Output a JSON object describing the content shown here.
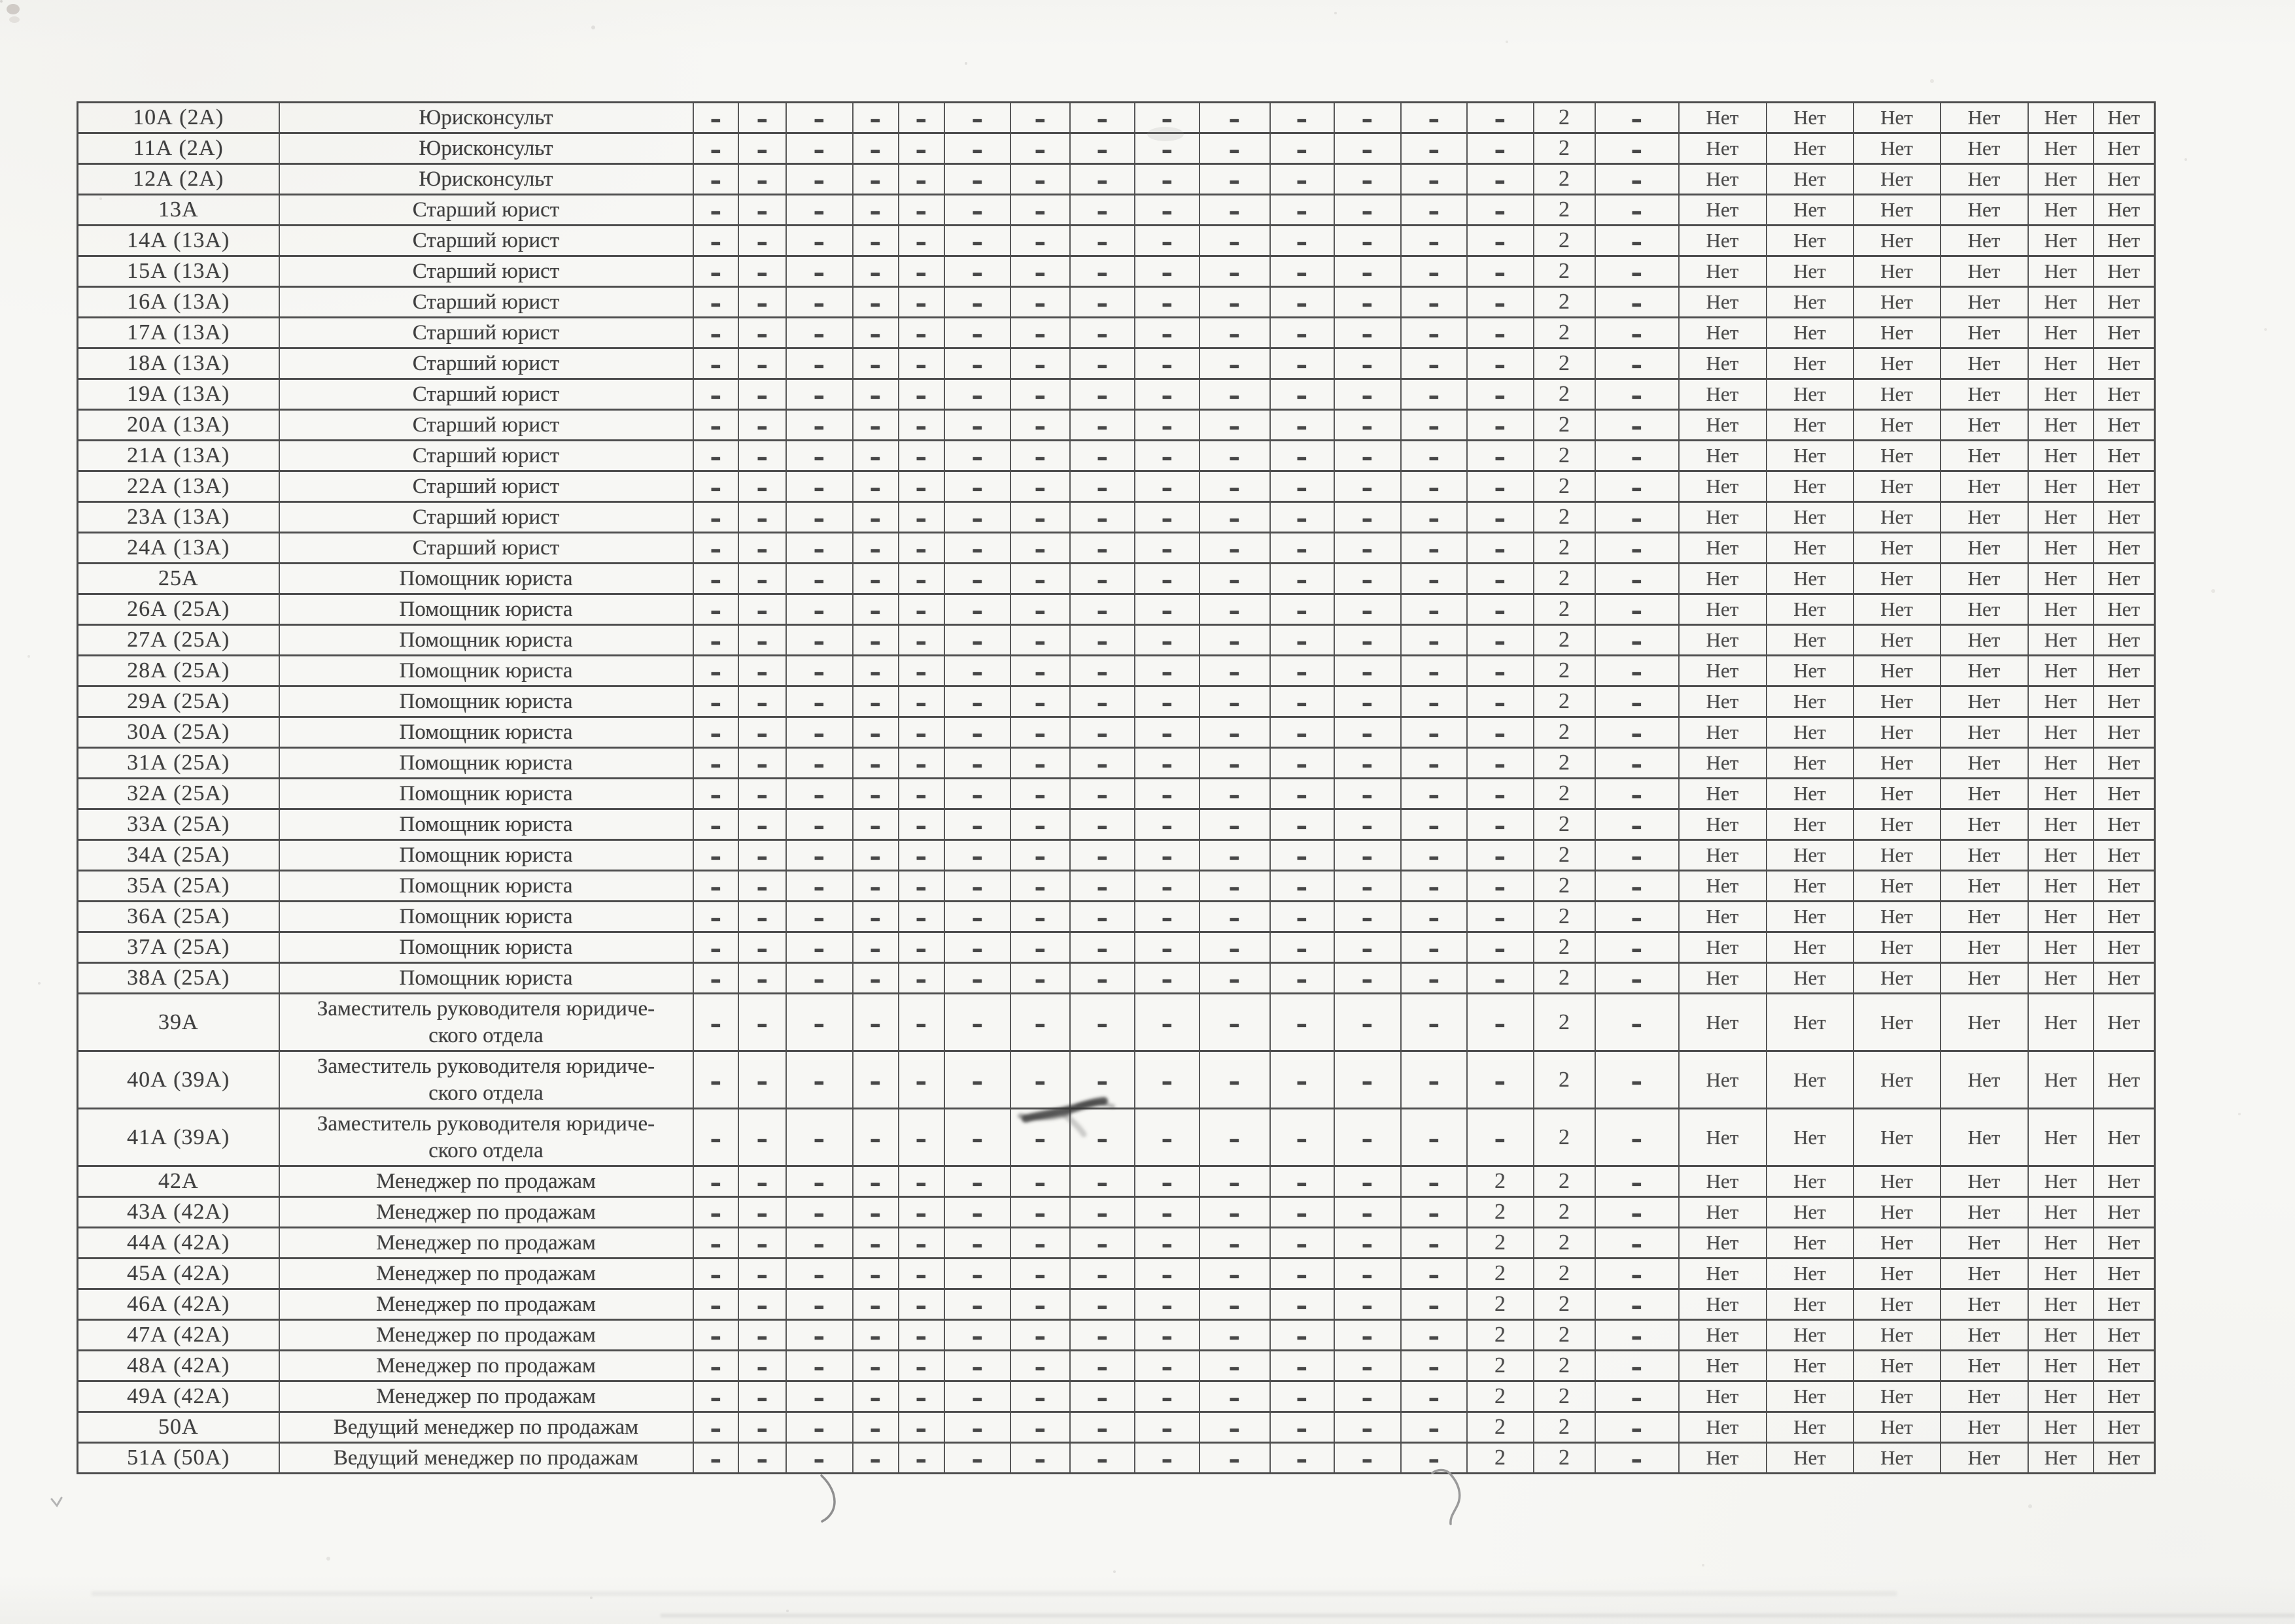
{
  "page": {
    "kind": "scanned table page (continuation, no visible header)",
    "language": "ru"
  },
  "colors": {
    "paper": "#f7f7f4",
    "ink": "#434343",
    "grid_line": "#4e4e4e"
  },
  "table": {
    "cell_patterns": {
      "legal": [
        "-",
        "-",
        "-",
        "-",
        "-",
        "-",
        "-",
        "-",
        "-",
        "-",
        "-",
        "-",
        "-",
        "-",
        "2",
        "-",
        "Нет",
        "Нет",
        "Нет",
        "Нет",
        "Нет",
        "Нет"
      ],
      "sales": [
        "-",
        "-",
        "-",
        "-",
        "-",
        "-",
        "-",
        "-",
        "-",
        "-",
        "-",
        "-",
        "-",
        "2",
        "2",
        "-",
        "Нет",
        "Нет",
        "Нет",
        "Нет",
        "Нет",
        "Нет"
      ]
    },
    "rows": [
      {
        "code": "10А (2А)",
        "position": "Юрисконсульт",
        "pattern": "legal",
        "tall": false
      },
      {
        "code": "11А (2А)",
        "position": "Юрисконсульт",
        "pattern": "legal",
        "tall": false
      },
      {
        "code": "12А (2А)",
        "position": "Юрисконсульт",
        "pattern": "legal",
        "tall": false
      },
      {
        "code": "13А",
        "position": "Старший юрист",
        "pattern": "legal",
        "tall": false
      },
      {
        "code": "14А (13А)",
        "position": "Старший юрист",
        "pattern": "legal",
        "tall": false
      },
      {
        "code": "15А (13А)",
        "position": "Старший юрист",
        "pattern": "legal",
        "tall": false
      },
      {
        "code": "16А (13А)",
        "position": "Старший юрист",
        "pattern": "legal",
        "tall": false
      },
      {
        "code": "17А (13А)",
        "position": "Старший юрист",
        "pattern": "legal",
        "tall": false
      },
      {
        "code": "18А (13А)",
        "position": "Старший юрист",
        "pattern": "legal",
        "tall": false
      },
      {
        "code": "19А (13А)",
        "position": "Старший юрист",
        "pattern": "legal",
        "tall": false
      },
      {
        "code": "20А (13А)",
        "position": "Старший юрист",
        "pattern": "legal",
        "tall": false
      },
      {
        "code": "21А (13А)",
        "position": "Старший юрист",
        "pattern": "legal",
        "tall": false
      },
      {
        "code": "22А (13А)",
        "position": "Старший юрист",
        "pattern": "legal",
        "tall": false
      },
      {
        "code": "23А (13А)",
        "position": "Старший юрист",
        "pattern": "legal",
        "tall": false
      },
      {
        "code": "24А (13А)",
        "position": "Старший юрист",
        "pattern": "legal",
        "tall": false
      },
      {
        "code": "25А",
        "position": "Помощник юриста",
        "pattern": "legal",
        "tall": false
      },
      {
        "code": "26А (25А)",
        "position": "Помощник юриста",
        "pattern": "legal",
        "tall": false
      },
      {
        "code": "27А (25А)",
        "position": "Помощник юриста",
        "pattern": "legal",
        "tall": false
      },
      {
        "code": "28А (25А)",
        "position": "Помощник юриста",
        "pattern": "legal",
        "tall": false
      },
      {
        "code": "29А (25А)",
        "position": "Помощник юриста",
        "pattern": "legal",
        "tall": false
      },
      {
        "code": "30А (25А)",
        "position": "Помощник юриста",
        "pattern": "legal",
        "tall": false
      },
      {
        "code": "31А (25А)",
        "position": "Помощник юриста",
        "pattern": "legal",
        "tall": false
      },
      {
        "code": "32А (25А)",
        "position": "Помощник юриста",
        "pattern": "legal",
        "tall": false
      },
      {
        "code": "33А (25А)",
        "position": "Помощник юриста",
        "pattern": "legal",
        "tall": false
      },
      {
        "code": "34А (25А)",
        "position": "Помощник юриста",
        "pattern": "legal",
        "tall": false
      },
      {
        "code": "35А (25А)",
        "position": "Помощник юриста",
        "pattern": "legal",
        "tall": false
      },
      {
        "code": "36А (25А)",
        "position": "Помощник юриста",
        "pattern": "legal",
        "tall": false
      },
      {
        "code": "37А (25А)",
        "position": "Помощник юриста",
        "pattern": "legal",
        "tall": false
      },
      {
        "code": "38А (25А)",
        "position": "Помощник юриста",
        "pattern": "legal",
        "tall": false
      },
      {
        "code": "39А",
        "position": "Заместитель руководителя юридиче-\nского отдела",
        "pattern": "legal",
        "tall": true
      },
      {
        "code": "40А (39А)",
        "position": "Заместитель руководителя юридиче-\nского отдела",
        "pattern": "legal",
        "tall": true
      },
      {
        "code": "41А (39А)",
        "position": "Заместитель руководителя юридиче-\nского отдела",
        "pattern": "legal",
        "tall": true
      },
      {
        "code": "42А",
        "position": "Менеджер по продажам",
        "pattern": "sales",
        "tall": false
      },
      {
        "code": "43А (42А)",
        "position": "Менеджер по продажам",
        "pattern": "sales",
        "tall": false
      },
      {
        "code": "44А (42А)",
        "position": "Менеджер по продажам",
        "pattern": "sales",
        "tall": false
      },
      {
        "code": "45А (42А)",
        "position": "Менеджер по продажам",
        "pattern": "sales",
        "tall": false
      },
      {
        "code": "46А (42А)",
        "position": "Менеджер по продажам",
        "pattern": "sales",
        "tall": false
      },
      {
        "code": "47А (42А)",
        "position": "Менеджер по продажам",
        "pattern": "sales",
        "tall": false
      },
      {
        "code": "48А (42А)",
        "position": "Менеджер по продажам",
        "pattern": "sales",
        "tall": false
      },
      {
        "code": "49А (42А)",
        "position": "Менеджер по продажам",
        "pattern": "sales",
        "tall": false
      },
      {
        "code": "50А",
        "position": "Ведущий менеджер по продажам",
        "pattern": "sales",
        "tall": false
      },
      {
        "code": "51А (50А)",
        "position": "Ведущий менеджер по продажам",
        "pattern": "sales",
        "tall": false
      }
    ]
  },
  "artifacts": {
    "marks": [
      "pencil-scribble-row-41A",
      "pen-curve-left",
      "pen-curve-right",
      "small-check-mark",
      "edge-smudge-top-left",
      "faint-smudge-row-11A"
    ]
  }
}
